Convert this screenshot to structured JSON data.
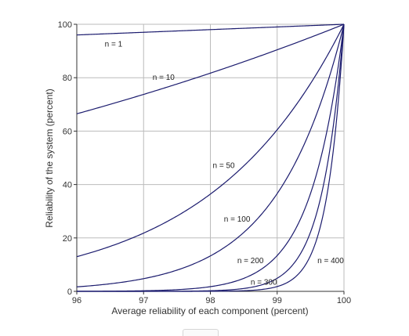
{
  "chart_data": {
    "type": "line",
    "xlabel": "Average reliability of each component (percent)",
    "ylabel": "Reliability of the system (percent)",
    "xlim": [
      96,
      100
    ],
    "ylim": [
      0,
      100
    ],
    "x_ticks": [
      "96",
      "97",
      "98",
      "99",
      "100"
    ],
    "y_ticks": [
      "0",
      "20",
      "40",
      "60",
      "80",
      "100"
    ],
    "grid": true,
    "line_color": "#1b1b6e",
    "grid_color": "#bbbbbb",
    "series": [
      {
        "name": "n = 1",
        "exponent": 1,
        "x": [
          96,
          97,
          98,
          99,
          100
        ],
        "y": [
          96,
          97,
          98,
          99,
          100
        ]
      },
      {
        "name": "n = 10",
        "exponent": 10,
        "x": [
          96,
          97,
          98,
          99,
          100
        ],
        "y": [
          66.5,
          73.7,
          81.7,
          90.4,
          100
        ]
      },
      {
        "name": "n = 50",
        "exponent": 50,
        "x": [
          96,
          97,
          98,
          99,
          100
        ],
        "y": [
          13.0,
          21.8,
          36.4,
          60.5,
          100
        ]
      },
      {
        "name": "n = 100",
        "exponent": 100,
        "x": [
          96,
          97,
          98,
          99,
          100
        ],
        "y": [
          1.7,
          4.8,
          13.3,
          36.6,
          100
        ]
      },
      {
        "name": "n = 200",
        "exponent": 200,
        "x": [
          96,
          97,
          98,
          99,
          100
        ],
        "y": [
          0.0,
          0.2,
          1.8,
          13.4,
          100
        ]
      },
      {
        "name": "n = 300",
        "exponent": 300,
        "x": [
          96,
          97,
          98,
          99,
          100
        ],
        "y": [
          0.0,
          0.0,
          0.2,
          4.9,
          100
        ]
      },
      {
        "name": "n = 400",
        "exponent": 400,
        "x": [
          96,
          97,
          98,
          99,
          100
        ],
        "y": [
          0.0,
          0.0,
          0.0,
          1.8,
          100
        ]
      }
    ],
    "annotations": [
      {
        "text": "n = 1",
        "x": 96.55,
        "y": 92.5
      },
      {
        "text": "n = 10",
        "x": 97.3,
        "y": 80
      },
      {
        "text": "n = 50",
        "x": 98.2,
        "y": 47
      },
      {
        "text": "n = 100",
        "x": 98.4,
        "y": 27
      },
      {
        "text": "n = 200",
        "x": 98.6,
        "y": 11.5
      },
      {
        "text": "n = 300",
        "x": 98.8,
        "y": 3.3
      },
      {
        "text": "n = 400",
        "x": 99.8,
        "y": 11.5
      }
    ]
  }
}
